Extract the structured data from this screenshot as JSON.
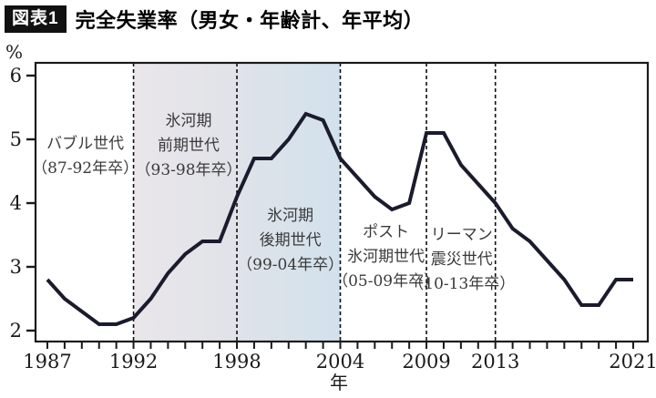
{
  "header": {
    "badge": "図表1",
    "title": "完全失業率（男女・年齢計、年平均）"
  },
  "chart_data": {
    "type": "line",
    "title": "完全失業率（男女・年齢計、年平均）",
    "xlabel": "年",
    "ylabel": "%",
    "x": [
      1987,
      1988,
      1989,
      1990,
      1991,
      1992,
      1993,
      1994,
      1995,
      1996,
      1997,
      1998,
      1999,
      2000,
      2001,
      2002,
      2003,
      2004,
      2005,
      2006,
      2007,
      2008,
      2009,
      2010,
      2011,
      2012,
      2013,
      2014,
      2015,
      2016,
      2017,
      2018,
      2019,
      2020,
      2021
    ],
    "values": [
      2.8,
      2.5,
      2.3,
      2.1,
      2.1,
      2.2,
      2.5,
      2.9,
      3.2,
      3.4,
      3.4,
      4.1,
      4.7,
      4.7,
      5.0,
      5.4,
      5.3,
      4.7,
      4.4,
      4.1,
      3.9,
      4.0,
      5.1,
      5.1,
      4.6,
      4.3,
      4.0,
      3.6,
      3.4,
      3.1,
      2.8,
      2.4,
      2.4,
      2.8,
      2.8
    ],
    "xlim": [
      1987,
      2021
    ],
    "ylim": [
      2,
      6
    ],
    "y_ticks": [
      2,
      3,
      4,
      5,
      6
    ],
    "x_tick_label_years": [
      1987,
      1992,
      1998,
      2004,
      2009,
      2013,
      2021
    ],
    "dashed_line_years": [
      1992,
      1998,
      2004,
      2009,
      2013
    ],
    "grid": false,
    "legend": false,
    "line_color": "#1b1b2e",
    "axis_color": "#1a1a1a",
    "shaded_band": {
      "from_year": 1992,
      "to_year": 2004,
      "gradient": [
        "#eae6ea",
        "#e1e3e9",
        "#d2e1ec"
      ]
    },
    "annotations": [
      {
        "name": "bubble-generation",
        "lines": [
          "バブル世代",
          "（87-92年卒）"
        ],
        "center_year": 1989.2,
        "top_value": 5.12
      },
      {
        "name": "ice-age-early-generation",
        "lines": [
          "氷河期",
          "前期世代",
          "（93-98年卒）"
        ],
        "center_year": 1995.2,
        "top_value": 5.47
      },
      {
        "name": "ice-age-late-generation",
        "lines": [
          "氷河期",
          "後期世代",
          "（99-04年卒）"
        ],
        "center_year": 2001.1,
        "top_value": 3.99
      },
      {
        "name": "post-ice-age-generation",
        "lines": [
          "ポスト",
          "氷河期世代",
          "（05-09年卒）"
        ],
        "center_year": 2006.65,
        "top_value": 3.73
      },
      {
        "name": "lehman-quake-generation",
        "lines": [
          "リーマン",
          "震災世代",
          "（10-13年卒）"
        ],
        "center_year": 2011.05,
        "top_value": 3.69
      }
    ]
  }
}
